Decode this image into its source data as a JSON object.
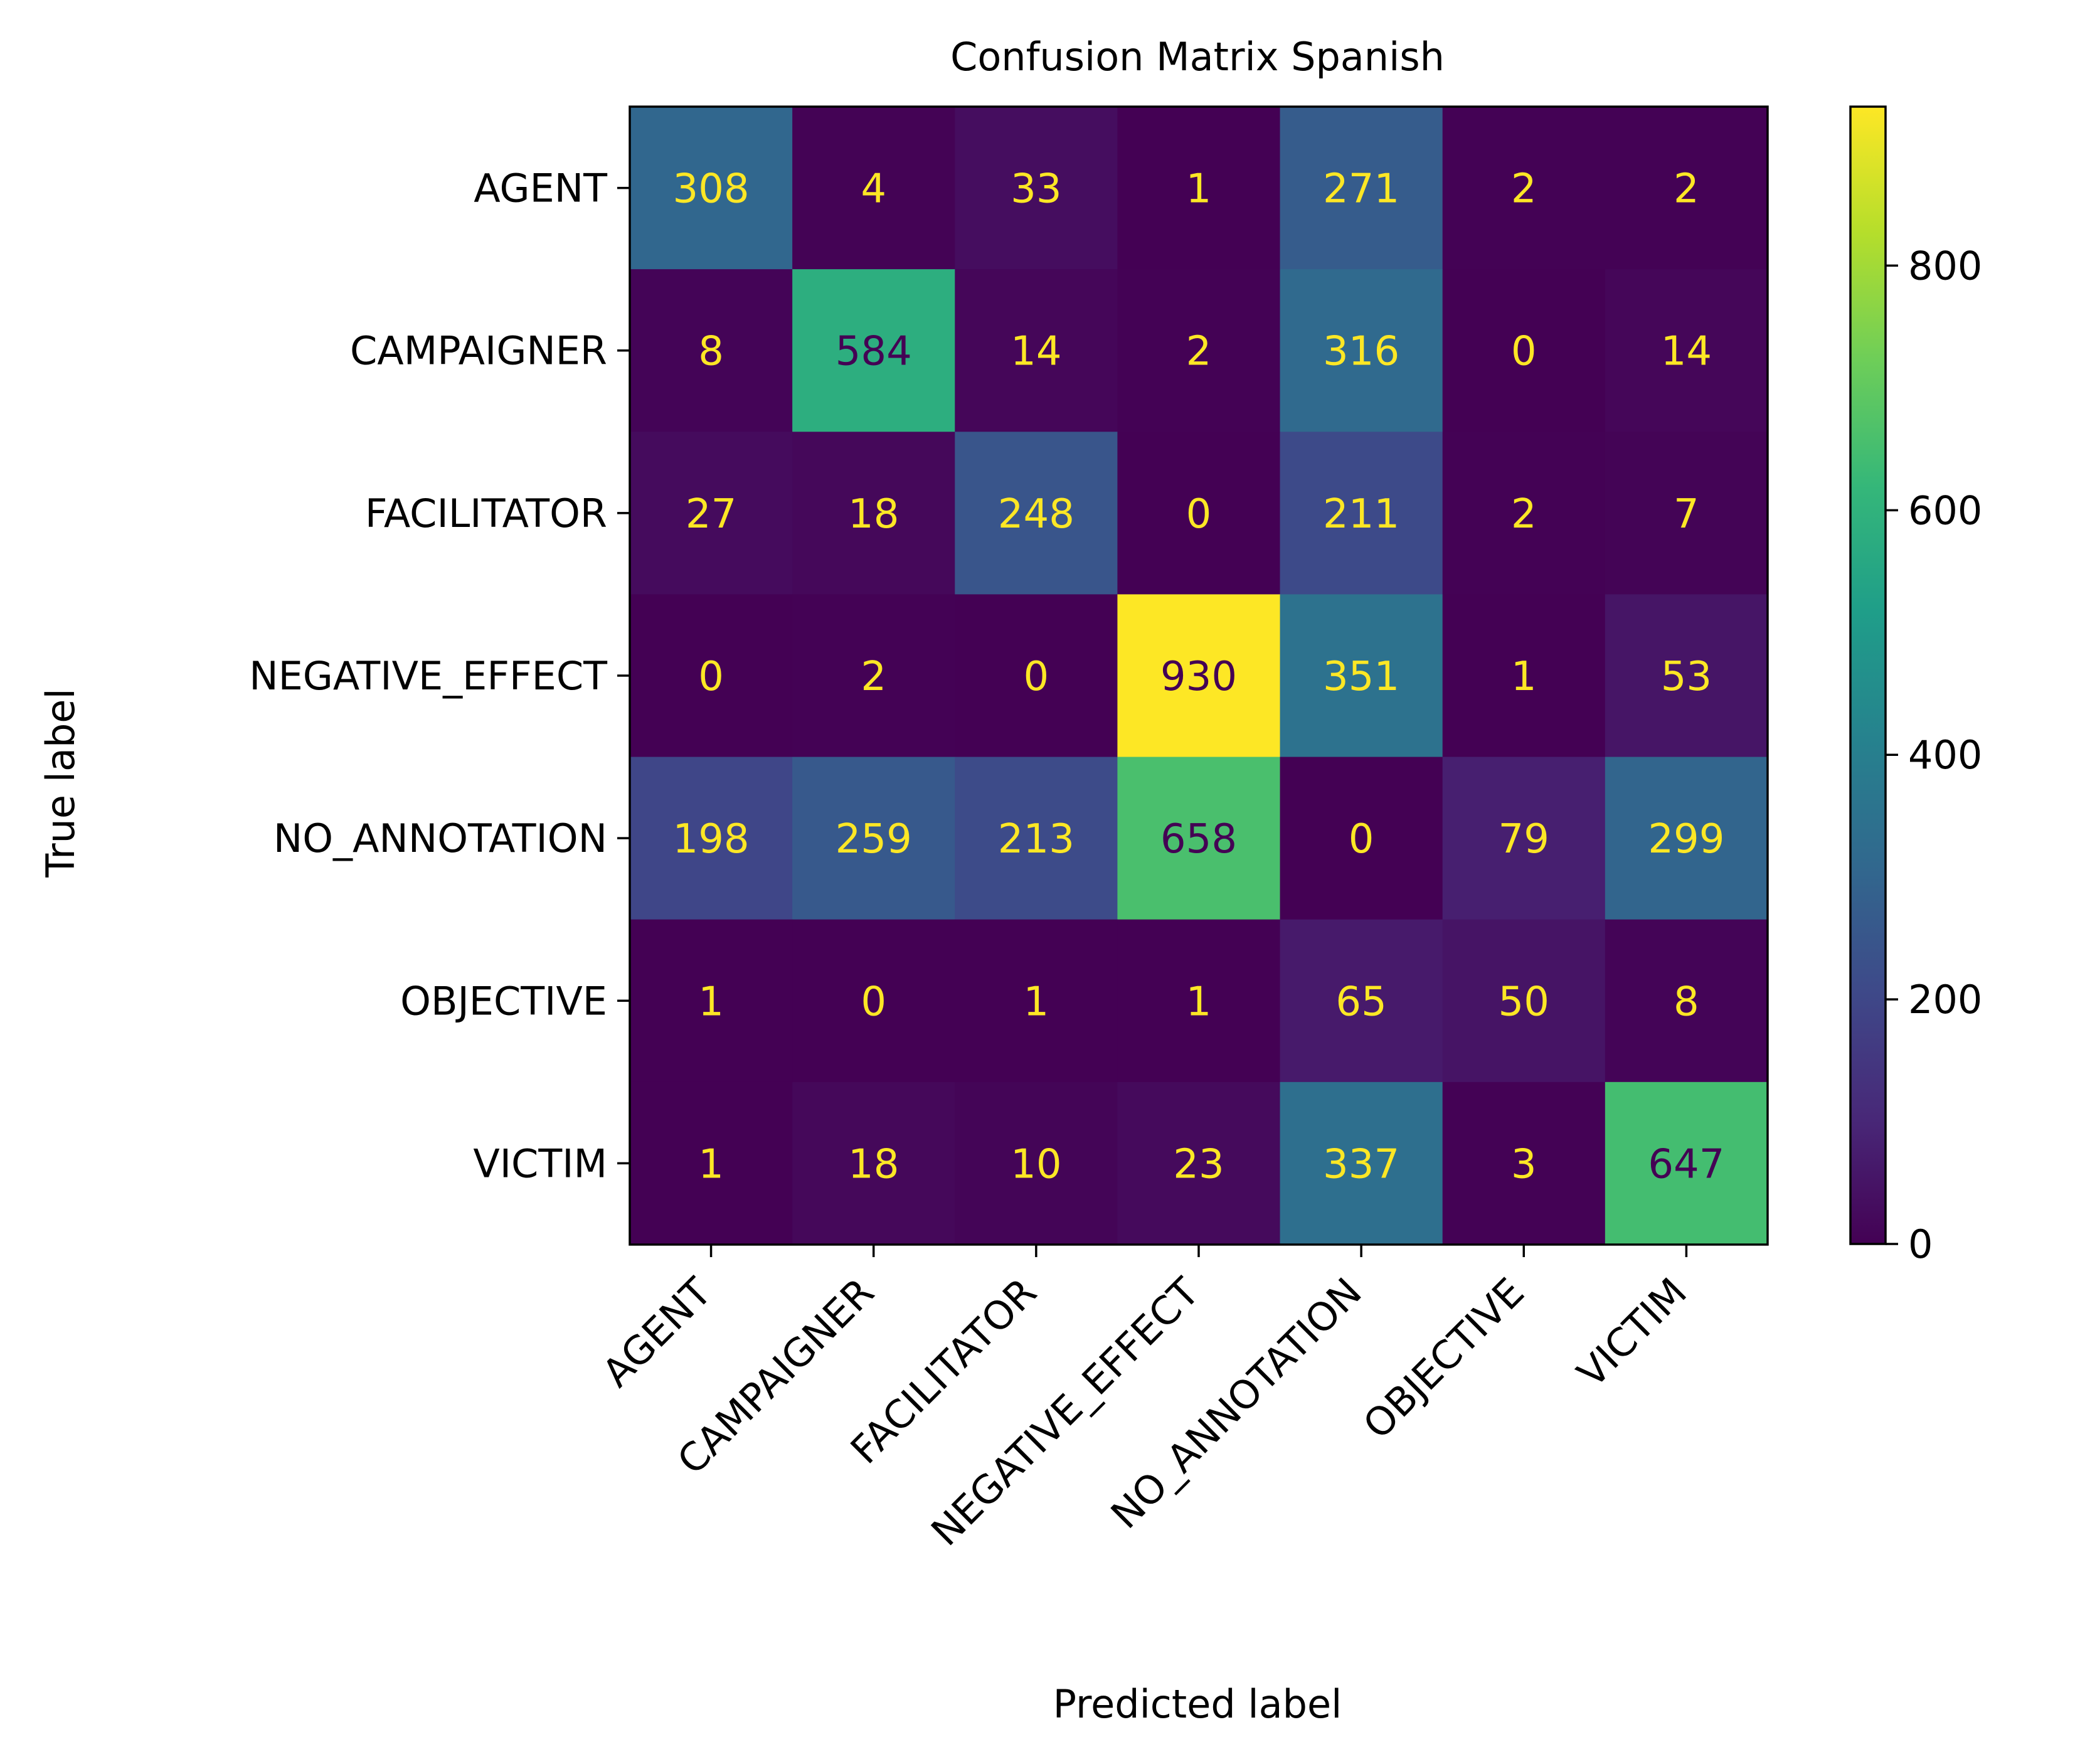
{
  "chart_data": {
    "type": "heatmap",
    "title": "Confusion Matrix Spanish",
    "xlabel": "Predicted label",
    "ylabel": "True label",
    "x_labels": [
      "AGENT",
      "CAMPAIGNER",
      "FACILITATOR",
      "NEGATIVE_EFFECT",
      "NO_ANNOTATION",
      "OBJECTIVE",
      "VICTIM"
    ],
    "y_labels": [
      "AGENT",
      "CAMPAIGNER",
      "FACILITATOR",
      "NEGATIVE_EFFECT",
      "NO_ANNOTATION",
      "OBJECTIVE",
      "VICTIM"
    ],
    "matrix": [
      [
        308,
        4,
        33,
        1,
        271,
        2,
        2
      ],
      [
        8,
        584,
        14,
        2,
        316,
        0,
        14
      ],
      [
        27,
        18,
        248,
        0,
        211,
        2,
        7
      ],
      [
        0,
        2,
        0,
        930,
        351,
        1,
        53
      ],
      [
        198,
        259,
        213,
        658,
        0,
        79,
        299
      ],
      [
        1,
        0,
        1,
        1,
        65,
        50,
        8
      ],
      [
        1,
        18,
        10,
        23,
        337,
        3,
        647
      ]
    ],
    "colormap": "viridis",
    "vmin": 0,
    "vmax": 930,
    "colorbar_ticks": [
      0,
      200,
      400,
      600,
      800
    ],
    "text_color_light": "#fde725",
    "text_color_dark": "#440154"
  }
}
